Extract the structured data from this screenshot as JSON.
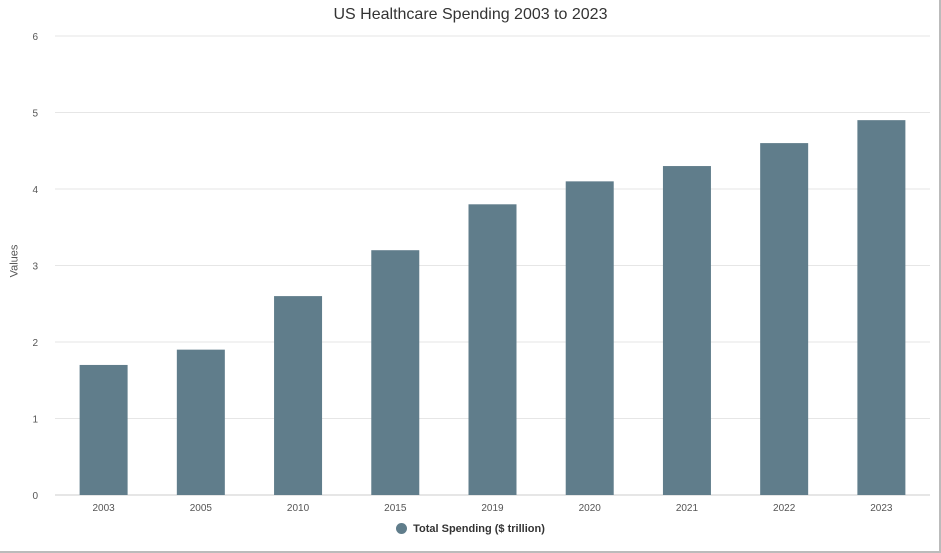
{
  "chart_data": {
    "type": "bar",
    "title": "US Healthcare Spending 2003 to 2023",
    "xlabel": "",
    "ylabel": "Values",
    "categories": [
      "2003",
      "2005",
      "2010",
      "2015",
      "2019",
      "2020",
      "2021",
      "2022",
      "2023"
    ],
    "series": [
      {
        "name": "Total Spending ($ trillion)",
        "values": [
          1.7,
          1.9,
          2.6,
          3.2,
          3.8,
          4.1,
          4.3,
          4.6,
          4.9
        ],
        "color": "#607d8b"
      }
    ],
    "ylim": [
      0,
      6
    ],
    "yticks": [
      0,
      1,
      2,
      3,
      4,
      5,
      6
    ],
    "grid": true,
    "legend": "bottom"
  }
}
